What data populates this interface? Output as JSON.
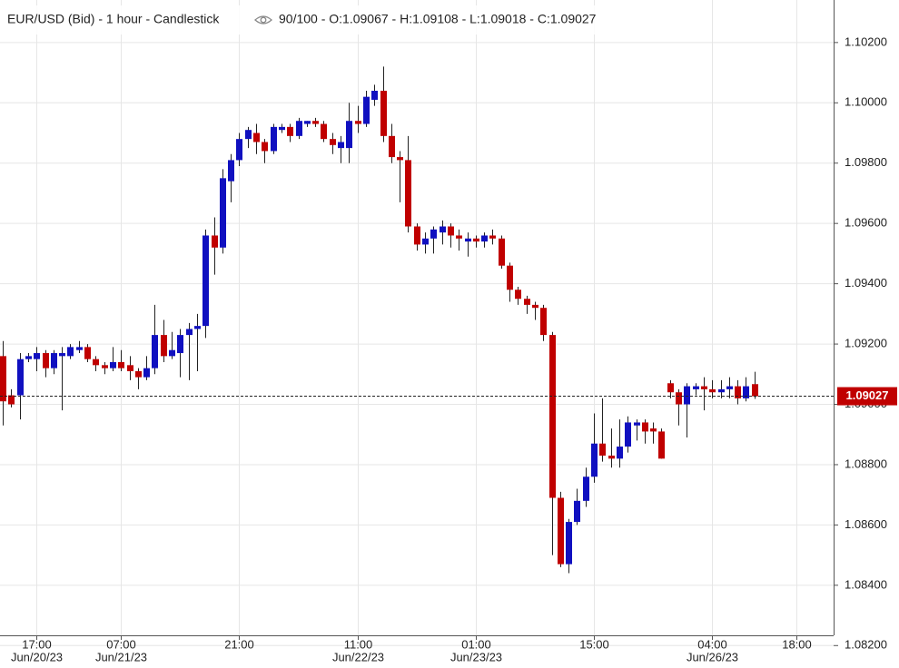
{
  "chart_data": {
    "type": "candlestick",
    "title": "EUR/USD (Bid) - 1 hour - Candlestick",
    "info": "90/100 - O:1.09067 - H:1.09108 - L:1.09018 - C:1.09027",
    "up_color": "#1010c0",
    "down_color": "#c00000",
    "grid": true,
    "last_price": 1.09027,
    "ylim": [
      1.08234,
      1.10341
    ],
    "yticks": [
      {
        "value": 1.082,
        "label": "1.08200"
      },
      {
        "value": 1.084,
        "label": "1.08400"
      },
      {
        "value": 1.086,
        "label": "1.08600"
      },
      {
        "value": 1.088,
        "label": "1.08800"
      },
      {
        "value": 1.09,
        "label": "1.09000"
      },
      {
        "value": 1.092,
        "label": "1.09200"
      },
      {
        "value": 1.094,
        "label": "1.09400"
      },
      {
        "value": 1.096,
        "label": "1.09600"
      },
      {
        "value": 1.098,
        "label": "1.09800"
      },
      {
        "value": 1.1,
        "label": "1.10000"
      },
      {
        "value": 1.102,
        "label": "1.10200"
      }
    ],
    "categories": [
      null,
      null,
      null,
      null,
      "17:00",
      null,
      null,
      null,
      null,
      null,
      null,
      null,
      null,
      null,
      "07:00",
      null,
      null,
      null,
      null,
      null,
      null,
      null,
      null,
      null,
      null,
      null,
      null,
      null,
      "21:00",
      null,
      null,
      null,
      null,
      null,
      null,
      null,
      null,
      null,
      null,
      null,
      null,
      null,
      "11:00",
      null,
      null,
      null,
      null,
      null,
      null,
      null,
      null,
      null,
      null,
      null,
      null,
      null,
      "01:00",
      null,
      null,
      null,
      null,
      null,
      null,
      null,
      null,
      null,
      null,
      null,
      null,
      null,
      "15:00",
      null,
      null,
      null,
      null,
      null,
      null,
      null,
      null,
      null,
      null,
      null,
      null,
      null,
      "04:00",
      null,
      null,
      null,
      null,
      null,
      null,
      null,
      null,
      null,
      "18:00"
    ],
    "dates": [
      null,
      null,
      null,
      null,
      "Jun/20/23",
      null,
      null,
      null,
      null,
      null,
      null,
      null,
      null,
      null,
      "Jun/21/23",
      null,
      null,
      null,
      null,
      null,
      null,
      null,
      null,
      null,
      null,
      null,
      null,
      null,
      null,
      null,
      null,
      null,
      null,
      null,
      null,
      null,
      null,
      null,
      null,
      null,
      null,
      null,
      "Jun/22/23",
      null,
      null,
      null,
      null,
      null,
      null,
      null,
      null,
      null,
      null,
      null,
      null,
      null,
      "Jun/23/23",
      null,
      null,
      null,
      null,
      null,
      null,
      null,
      null,
      null,
      null,
      null,
      null,
      null,
      null,
      null,
      null,
      null,
      null,
      null,
      null,
      null,
      null,
      null,
      null,
      null,
      null,
      null,
      "Jun/26/23",
      null,
      null,
      null,
      null,
      null,
      null,
      null,
      null,
      null,
      null
    ],
    "open": [
      1.0916,
      1.0903,
      1.0903,
      1.0915,
      1.0915,
      1.0917,
      1.0912,
      1.0916,
      1.0916,
      1.0918,
      1.0919,
      1.0915,
      1.0913,
      1.0912,
      1.0914,
      1.0913,
      1.0911,
      1.0909,
      1.0912,
      1.0923,
      1.0916,
      1.0917,
      1.0923,
      1.0925,
      1.0926,
      1.0956,
      1.0952,
      1.0974,
      1.0981,
      1.0988,
      1.099,
      1.0987,
      1.0984,
      1.0991,
      1.0992,
      1.0989,
      1.0993,
      1.0994,
      1.0993,
      1.0988,
      1.0985,
      1.0985,
      1.0994,
      1.0993,
      1.1001,
      1.1004,
      1.0989,
      1.0982,
      1.0981,
      1.0959,
      1.0953,
      1.0955,
      1.0957,
      1.0959,
      1.0956,
      1.0954,
      1.0955,
      1.0954,
      1.0956,
      1.0955,
      1.0946,
      1.0938,
      1.0935,
      1.0933,
      1.0932,
      1.0923,
      1.0869,
      1.0847,
      1.0861,
      1.0868,
      1.0876,
      1.0887,
      1.0883,
      1.0882,
      1.0886,
      1.0893,
      1.0894,
      1.0892,
      1.0891,
      1.0907,
      1.0904,
      1.09,
      1.0905,
      1.0906,
      1.0905,
      1.0904,
      1.0905,
      1.0906,
      1.0902,
      1.09067,
      null,
      null,
      null,
      null,
      null
    ],
    "high": [
      1.0921,
      1.0905,
      1.0917,
      1.0917,
      1.0919,
      1.0918,
      1.0918,
      1.0919,
      1.092,
      1.0921,
      1.092,
      1.0916,
      1.0914,
      1.0919,
      1.0918,
      1.0916,
      1.0912,
      1.0916,
      1.0933,
      1.0928,
      1.0924,
      1.0925,
      1.0927,
      1.093,
      1.0958,
      1.0962,
      1.0978,
      1.0983,
      1.099,
      1.0992,
      1.0993,
      1.0988,
      1.0993,
      1.0993,
      1.0993,
      1.0995,
      1.0994,
      1.0995,
      1.0994,
      1.099,
      1.0989,
      1.1,
      1.0999,
      1.1004,
      1.1006,
      1.1012,
      1.0993,
      1.0984,
      1.0989,
      1.096,
      1.0957,
      1.0959,
      1.0961,
      1.096,
      1.0958,
      1.0957,
      1.0956,
      1.0957,
      1.0958,
      1.0956,
      1.0947,
      1.0939,
      1.0936,
      1.0934,
      1.0933,
      1.0924,
      1.0871,
      1.0862,
      1.0872,
      1.0879,
      1.0897,
      1.0902,
      1.0892,
      1.0895,
      1.0896,
      1.0895,
      1.0895,
      1.0894,
      1.0892,
      1.0908,
      1.0905,
      1.0907,
      1.0907,
      1.0909,
      1.0908,
      1.0908,
      1.0909,
      1.0908,
      1.0909,
      1.09108,
      null,
      null,
      null,
      null,
      null
    ],
    "low": [
      1.0893,
      1.0899,
      1.0895,
      1.0914,
      1.0911,
      1.0909,
      1.091,
      1.0898,
      1.0915,
      1.0917,
      1.0914,
      1.0911,
      1.091,
      1.0911,
      1.0911,
      1.0908,
      1.0905,
      1.0908,
      1.091,
      1.0914,
      1.0915,
      1.0909,
      1.0908,
      1.0911,
      1.0922,
      1.0943,
      1.095,
      1.0967,
      1.0979,
      1.0985,
      1.0983,
      1.098,
      1.0983,
      1.099,
      1.0987,
      1.0988,
      1.0992,
      1.0992,
      1.0987,
      1.0983,
      1.098,
      1.098,
      1.099,
      1.0992,
      1.0999,
      1.0987,
      1.098,
      1.0967,
      1.0957,
      1.0951,
      1.095,
      1.095,
      1.0953,
      1.0952,
      1.0951,
      1.0949,
      1.0952,
      1.0952,
      1.0953,
      1.0945,
      1.0934,
      1.0933,
      1.093,
      1.0928,
      1.0921,
      1.085,
      1.0846,
      1.0844,
      1.086,
      1.0866,
      1.0874,
      1.0881,
      1.0879,
      1.0879,
      1.0884,
      1.0888,
      1.0887,
      1.0887,
      1.0882,
      1.0902,
      1.0893,
      1.0889,
      1.0903,
      1.0898,
      1.0902,
      1.0902,
      1.0902,
      1.09,
      1.0901,
      1.09018,
      null,
      null,
      null,
      null,
      null
    ],
    "close": [
      1.0901,
      1.09,
      1.0915,
      1.0916,
      1.0917,
      1.0912,
      1.0917,
      1.0917,
      1.0919,
      1.0919,
      1.0915,
      1.0913,
      1.0912,
      1.0914,
      1.0912,
      1.0911,
      1.0909,
      1.0912,
      1.0923,
      1.0916,
      1.0918,
      1.0923,
      1.0925,
      1.0926,
      1.0956,
      1.0952,
      1.0975,
      1.0981,
      1.0988,
      1.0991,
      1.0987,
      1.0984,
      1.0992,
      1.0992,
      1.0989,
      1.0994,
      1.0994,
      1.0993,
      1.0988,
      1.0986,
      1.0987,
      1.0994,
      1.0993,
      1.1002,
      1.1004,
      1.0989,
      1.0982,
      1.0981,
      1.0959,
      1.0953,
      1.0955,
      1.0958,
      1.0959,
      1.0956,
      1.0955,
      1.0955,
      1.0954,
      1.0956,
      1.0955,
      1.0946,
      1.0938,
      1.0935,
      1.0933,
      1.0932,
      1.0923,
      1.0869,
      1.0847,
      1.0861,
      1.0868,
      1.0876,
      1.0887,
      1.0883,
      1.0882,
      1.0886,
      1.0894,
      1.0894,
      1.0891,
      1.0891,
      1.0882,
      1.0904,
      1.09,
      1.0906,
      1.0906,
      1.0905,
      1.0904,
      1.0905,
      1.0906,
      1.0902,
      1.0906,
      1.09027,
      null,
      null,
      null,
      null,
      null
    ]
  }
}
